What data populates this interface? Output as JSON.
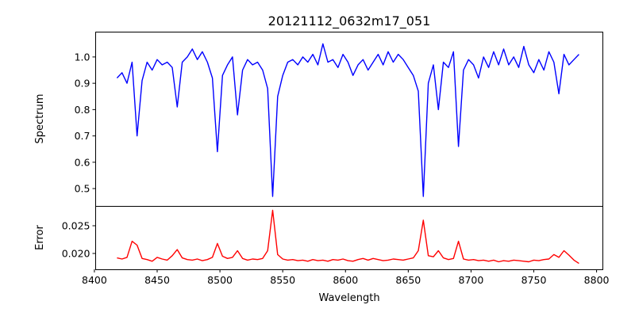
{
  "chart_data": [
    {
      "type": "line",
      "title": "20121112_0632m17_051",
      "xlabel": "",
      "ylabel": "Spectrum",
      "xlim": [
        8401,
        8805
      ],
      "ylim": [
        0.434,
        1.096
      ],
      "yticks": [
        "0.5",
        "0.6",
        "0.7",
        "0.8",
        "0.9",
        "1.0"
      ],
      "grid": false,
      "series": [
        {
          "name": "Spectrum",
          "color": "#0000ff",
          "x_start": 8418,
          "x_step": 4,
          "values": [
            0.92,
            0.94,
            0.9,
            0.98,
            0.7,
            0.91,
            0.98,
            0.95,
            0.99,
            0.97,
            0.98,
            0.96,
            0.81,
            0.98,
            1.0,
            1.03,
            0.99,
            1.02,
            0.98,
            0.92,
            0.64,
            0.93,
            0.97,
            1.0,
            0.78,
            0.95,
            0.99,
            0.97,
            0.98,
            0.95,
            0.88,
            0.47,
            0.85,
            0.93,
            0.98,
            0.99,
            0.97,
            1.0,
            0.98,
            1.01,
            0.97,
            1.05,
            0.98,
            0.99,
            0.96,
            1.01,
            0.98,
            0.93,
            0.97,
            0.99,
            0.95,
            0.98,
            1.01,
            0.97,
            1.02,
            0.98,
            1.01,
            0.99,
            0.96,
            0.93,
            0.87,
            0.47,
            0.9,
            0.97,
            0.8,
            0.98,
            0.96,
            1.02,
            0.66,
            0.95,
            0.99,
            0.97,
            0.92,
            1.0,
            0.96,
            1.02,
            0.97,
            1.03,
            0.97,
            1.0,
            0.96,
            1.04,
            0.97,
            0.94,
            0.99,
            0.95,
            1.02,
            0.98,
            0.86,
            1.01,
            0.97,
            0.99,
            1.01
          ]
        }
      ]
    },
    {
      "type": "line",
      "xlabel": "Wavelength",
      "ylabel": "Error",
      "xlim": [
        8401,
        8805
      ],
      "ylim": [
        0.01714,
        0.02857
      ],
      "xticks": [
        "8400",
        "8450",
        "8500",
        "8550",
        "8600",
        "8650",
        "8700",
        "8750",
        "8800"
      ],
      "yticks": [
        "0.020",
        "0.025"
      ],
      "grid": false,
      "series": [
        {
          "name": "Error",
          "color": "#ff0000",
          "x_start": 8418,
          "x_step": 4,
          "values": [
            0.0192,
            0.019,
            0.0193,
            0.0222,
            0.0215,
            0.0191,
            0.0189,
            0.0186,
            0.0193,
            0.019,
            0.0188,
            0.0196,
            0.0207,
            0.0192,
            0.0189,
            0.0188,
            0.019,
            0.0187,
            0.0189,
            0.0193,
            0.0218,
            0.0195,
            0.0191,
            0.0193,
            0.0205,
            0.0191,
            0.0188,
            0.019,
            0.0189,
            0.0191,
            0.0205,
            0.0278,
            0.0198,
            0.019,
            0.0188,
            0.0189,
            0.0187,
            0.0188,
            0.0186,
            0.0189,
            0.0187,
            0.0188,
            0.0186,
            0.0189,
            0.0188,
            0.019,
            0.0187,
            0.0186,
            0.0189,
            0.0191,
            0.0188,
            0.0191,
            0.0189,
            0.0187,
            0.0188,
            0.019,
            0.0189,
            0.0188,
            0.019,
            0.0192,
            0.0205,
            0.026,
            0.0196,
            0.0194,
            0.0205,
            0.0192,
            0.0189,
            0.0191,
            0.0222,
            0.019,
            0.0188,
            0.0189,
            0.0187,
            0.0188,
            0.0186,
            0.0188,
            0.0185,
            0.0187,
            0.0186,
            0.0188,
            0.0187,
            0.0186,
            0.0185,
            0.0188,
            0.0187,
            0.0189,
            0.019,
            0.0198,
            0.0193,
            0.0205,
            0.0197,
            0.0188,
            0.0182
          ]
        }
      ]
    }
  ]
}
